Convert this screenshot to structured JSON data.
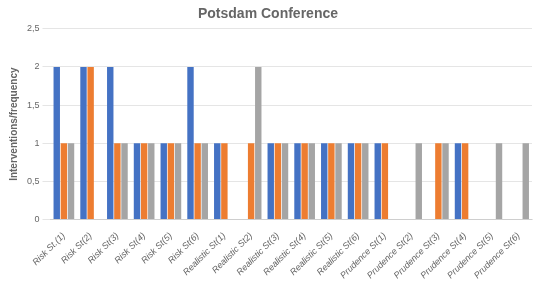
{
  "chart_data": {
    "type": "bar",
    "title": "Potsdam Conference",
    "ylabel": "Interventions/frequency",
    "categories": [
      "Risk St.(1)",
      "Risk St(2)",
      "Risk St(3)",
      "Risk St(4)",
      "Risk St(5)",
      "Risk St(6)",
      "Realistic St(1)",
      "Realistic St2)",
      "Realistic St(3)",
      "Realistic St(4)",
      "Realistic St(5)",
      "Realistic St(6)",
      "Prudence St(1)",
      "Prudence St(2)",
      "Prudence St(3)",
      "Prudence St(4)",
      "Prudence St(5)",
      "Prudence St(6)"
    ],
    "series": [
      {
        "color": "#4472C4",
        "values": [
          2,
          2,
          2,
          1,
          1,
          2,
          1,
          0,
          1,
          1,
          1,
          1,
          1,
          0,
          0,
          1,
          0,
          0
        ]
      },
      {
        "color": "#ED7D31",
        "values": [
          1,
          2,
          1,
          1,
          1,
          1,
          1,
          1,
          1,
          1,
          1,
          1,
          1,
          0,
          1,
          1,
          0,
          0
        ]
      },
      {
        "color": "#A5A5A5",
        "values": [
          1,
          0,
          1,
          1,
          1,
          1,
          0,
          2,
          1,
          1,
          1,
          1,
          0,
          1,
          1,
          0,
          1,
          1
        ]
      }
    ],
    "ylim": [
      0,
      2.5
    ],
    "yticks": [
      0,
      {
        "value": 0.5,
        "label": "0,5"
      },
      1,
      {
        "value": 1.5,
        "label": "1,5"
      },
      2,
      {
        "value": 2.5,
        "label": "2,5"
      }
    ],
    "grid": true
  }
}
